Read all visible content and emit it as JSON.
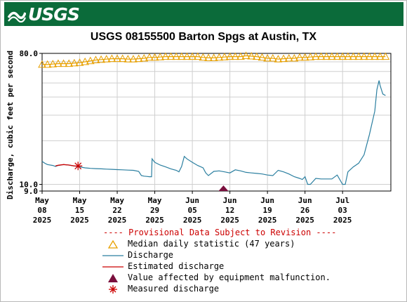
{
  "header": {
    "logo_text": "USGS",
    "logo_icon": "usgs-wave-icon",
    "brand_color": "#0b6b3a"
  },
  "chart_data": {
    "type": "line",
    "title": "USGS 08155500 Barton Spgs at Austin, TX",
    "ylabel": "Discharge, cubic feet per second",
    "xlabel": "",
    "yscale": "log",
    "ylim": [
      9.0,
      80.0
    ],
    "y_tick_labels": [
      {
        "value": 80.0,
        "label": "80.0"
      },
      {
        "value": 10.0,
        "label": "10.0"
      },
      {
        "value": 9.0,
        "label": "9.0"
      }
    ],
    "xlim": [
      "2025-05-08",
      "2025-07-12"
    ],
    "x_ticks": [
      {
        "date": "2025-05-08",
        "label": [
          "May",
          "08",
          "2025"
        ]
      },
      {
        "date": "2025-05-15",
        "label": [
          "May",
          "15",
          "2025"
        ]
      },
      {
        "date": "2025-05-22",
        "label": [
          "May",
          "22",
          "2025"
        ]
      },
      {
        "date": "2025-05-29",
        "label": [
          "May",
          "29",
          "2025"
        ]
      },
      {
        "date": "2025-06-05",
        "label": [
          "Jun",
          "05",
          "2025"
        ]
      },
      {
        "date": "2025-06-12",
        "label": [
          "Jun",
          "12",
          "2025"
        ]
      },
      {
        "date": "2025-06-19",
        "label": [
          "Jun",
          "19",
          "2025"
        ]
      },
      {
        "date": "2025-06-26",
        "label": [
          "Jun",
          "26",
          "2025"
        ]
      },
      {
        "date": "2025-07-03",
        "label": [
          "Jul",
          "03",
          "2025"
        ]
      }
    ],
    "grid": true,
    "series": [
      {
        "name": "Median daily statistic (47 years)",
        "kind": "median",
        "color": "#e8a000",
        "points": [
          [
            "2025-05-08",
            67
          ],
          [
            "2025-05-09",
            67
          ],
          [
            "2025-05-10",
            67.5
          ],
          [
            "2025-05-11",
            68
          ],
          [
            "2025-05-12",
            68
          ],
          [
            "2025-05-13",
            68
          ],
          [
            "2025-05-14",
            68.5
          ],
          [
            "2025-05-15",
            69
          ],
          [
            "2025-05-16",
            70
          ],
          [
            "2025-05-17",
            71
          ],
          [
            "2025-05-18",
            72
          ],
          [
            "2025-05-19",
            72.5
          ],
          [
            "2025-05-20",
            73
          ],
          [
            "2025-05-21",
            73.5
          ],
          [
            "2025-05-22",
            73.5
          ],
          [
            "2025-05-23",
            73.5
          ],
          [
            "2025-05-24",
            73
          ],
          [
            "2025-05-25",
            73
          ],
          [
            "2025-05-26",
            73.5
          ],
          [
            "2025-05-27",
            74
          ],
          [
            "2025-05-28",
            75
          ],
          [
            "2025-05-29",
            75
          ],
          [
            "2025-05-30",
            75.5
          ],
          [
            "2025-05-31",
            76
          ],
          [
            "2025-06-01",
            76
          ],
          [
            "2025-06-02",
            76
          ],
          [
            "2025-06-03",
            76
          ],
          [
            "2025-06-04",
            76
          ],
          [
            "2025-06-05",
            76
          ],
          [
            "2025-06-06",
            76
          ],
          [
            "2025-06-07",
            75
          ],
          [
            "2025-06-08",
            74.5
          ],
          [
            "2025-06-09",
            74.5
          ],
          [
            "2025-06-10",
            75
          ],
          [
            "2025-06-11",
            75.5
          ],
          [
            "2025-06-12",
            76
          ],
          [
            "2025-06-13",
            76
          ],
          [
            "2025-06-14",
            76
          ],
          [
            "2025-06-15",
            77
          ],
          [
            "2025-06-16",
            76.5
          ],
          [
            "2025-06-17",
            76
          ],
          [
            "2025-06-18",
            75
          ],
          [
            "2025-06-19",
            74
          ],
          [
            "2025-06-20",
            74
          ],
          [
            "2025-06-21",
            73
          ],
          [
            "2025-06-22",
            73.5
          ],
          [
            "2025-06-23",
            74
          ],
          [
            "2025-06-24",
            74
          ],
          [
            "2025-06-25",
            75
          ],
          [
            "2025-06-26",
            75
          ],
          [
            "2025-06-27",
            75.5
          ],
          [
            "2025-06-28",
            76
          ],
          [
            "2025-06-29",
            76
          ],
          [
            "2025-06-30",
            76
          ],
          [
            "2025-07-01",
            76
          ],
          [
            "2025-07-02",
            76
          ],
          [
            "2025-07-03",
            76
          ],
          [
            "2025-07-04",
            76
          ],
          [
            "2025-07-05",
            76
          ],
          [
            "2025-07-06",
            76
          ],
          [
            "2025-07-07",
            76
          ],
          [
            "2025-07-08",
            76
          ],
          [
            "2025-07-09",
            76
          ],
          [
            "2025-07-10",
            76
          ],
          [
            "2025-07-11",
            76
          ]
        ]
      },
      {
        "name": "Discharge",
        "kind": "discharge",
        "color": "#2b7fa0",
        "points": [
          [
            "2025-05-08",
            14.4
          ],
          [
            "2025-05-08.5",
            14.0
          ],
          [
            "2025-05-09",
            13.7
          ],
          [
            "2025-05-10",
            13.5
          ],
          [
            "2025-05-10.5",
            13.3
          ],
          [
            "2025-05-11",
            13.5
          ],
          [
            "2025-05-12",
            13.7
          ],
          [
            "2025-05-13",
            13.6
          ],
          [
            "2025-05-14",
            13.4
          ],
          [
            "2025-05-15",
            13.2
          ],
          [
            "2025-05-16",
            13.0
          ],
          [
            "2025-05-17",
            12.9
          ],
          [
            "2025-05-18",
            12.85
          ],
          [
            "2025-05-19",
            12.8
          ],
          [
            "2025-05-20",
            12.75
          ],
          [
            "2025-05-21",
            12.7
          ],
          [
            "2025-05-22",
            12.65
          ],
          [
            "2025-05-23",
            12.6
          ],
          [
            "2025-05-24",
            12.55
          ],
          [
            "2025-05-25",
            12.5
          ],
          [
            "2025-05-26",
            12.3
          ],
          [
            "2025-05-26.5",
            11.5
          ],
          [
            "2025-05-27",
            11.4
          ],
          [
            "2025-05-27.5",
            11.35
          ],
          [
            "2025-05-28",
            11.3
          ],
          [
            "2025-05-28.4",
            11.3
          ],
          [
            "2025-05-28.5",
            15.0
          ],
          [
            "2025-05-29",
            14.2
          ],
          [
            "2025-05-30",
            13.6
          ],
          [
            "2025-05-31",
            13.2
          ],
          [
            "2025-06-01",
            12.8
          ],
          [
            "2025-06-02",
            12.5
          ],
          [
            "2025-06-02.5",
            12.2
          ],
          [
            "2025-06-03",
            13.3
          ],
          [
            "2025-06-03.5",
            15.6
          ],
          [
            "2025-06-04",
            15.0
          ],
          [
            "2025-06-05",
            14.2
          ],
          [
            "2025-06-06",
            13.5
          ],
          [
            "2025-06-07",
            13.0
          ],
          [
            "2025-06-07.5",
            12.0
          ],
          [
            "2025-06-08",
            11.5
          ],
          [
            "2025-06-09",
            12.3
          ],
          [
            "2025-06-10",
            12.4
          ],
          [
            "2025-06-11",
            12.2
          ],
          [
            "2025-06-12",
            12.0
          ],
          [
            "2025-06-13",
            12.6
          ],
          [
            "2025-06-14",
            12.4
          ],
          [
            "2025-06-15",
            12.1
          ],
          [
            "2025-06-16",
            12.0
          ],
          [
            "2025-06-17",
            11.9
          ],
          [
            "2025-06-18",
            11.8
          ],
          [
            "2025-06-19",
            11.6
          ],
          [
            "2025-06-20",
            11.5
          ],
          [
            "2025-06-21",
            12.5
          ],
          [
            "2025-06-22",
            12.2
          ],
          [
            "2025-06-23",
            11.8
          ],
          [
            "2025-06-24",
            11.3
          ],
          [
            "2025-06-25",
            11.0
          ],
          [
            "2025-06-25.5",
            10.8
          ],
          [
            "2025-06-26",
            11.3
          ],
          [
            "2025-06-26.5",
            10.0
          ],
          [
            "2025-06-27",
            10.0
          ],
          [
            "2025-06-28",
            11.0
          ],
          [
            "2025-06-29",
            10.9
          ],
          [
            "2025-06-30",
            10.9
          ],
          [
            "2025-07-01",
            10.9
          ],
          [
            "2025-07-02",
            11.6
          ],
          [
            "2025-07-03",
            10.0
          ],
          [
            "2025-07-03.5",
            10.0
          ],
          [
            "2025-07-04",
            12.2
          ],
          [
            "2025-07-05",
            13.2
          ],
          [
            "2025-07-06",
            14.0
          ],
          [
            "2025-07-07",
            16.0
          ],
          [
            "2025-07-08",
            22.0
          ],
          [
            "2025-07-09",
            32.0
          ],
          [
            "2025-07-09.4",
            45.0
          ],
          [
            "2025-07-09.8",
            52.0
          ],
          [
            "2025-07-10",
            48.0
          ],
          [
            "2025-07-10.5",
            42.0
          ],
          [
            "2025-07-11",
            41.0
          ]
        ]
      },
      {
        "name": "Estimated discharge",
        "kind": "estimated",
        "color": "#cc0000",
        "points": [
          [
            "2025-05-10.5",
            13.4
          ],
          [
            "2025-05-11",
            13.55
          ],
          [
            "2025-05-12",
            13.7
          ],
          [
            "2025-05-13",
            13.6
          ],
          [
            "2025-05-14",
            13.4
          ]
        ]
      },
      {
        "name": "Value affected by equipment malfunction.",
        "kind": "malfunction",
        "color": "#7a0f3d",
        "points": [
          [
            "2025-06-10.8",
            9.0
          ]
        ]
      },
      {
        "name": "Measured discharge",
        "kind": "measured",
        "color": "#cc0000",
        "points": [
          [
            "2025-05-14.7",
            13.4
          ]
        ]
      }
    ]
  },
  "legend": {
    "provisional": "---- Provisional Data Subject to Revision ----",
    "items": [
      {
        "label": "Median daily statistic (47 years)",
        "icon": "median-triangle-icon"
      },
      {
        "label": "Discharge",
        "icon": "discharge-line-icon"
      },
      {
        "label": "Estimated discharge",
        "icon": "estimated-line-icon"
      },
      {
        "label": "Value affected by equipment malfunction.",
        "icon": "malfunction-triangle-icon"
      },
      {
        "label": "Measured discharge",
        "icon": "measured-star-icon"
      }
    ]
  }
}
